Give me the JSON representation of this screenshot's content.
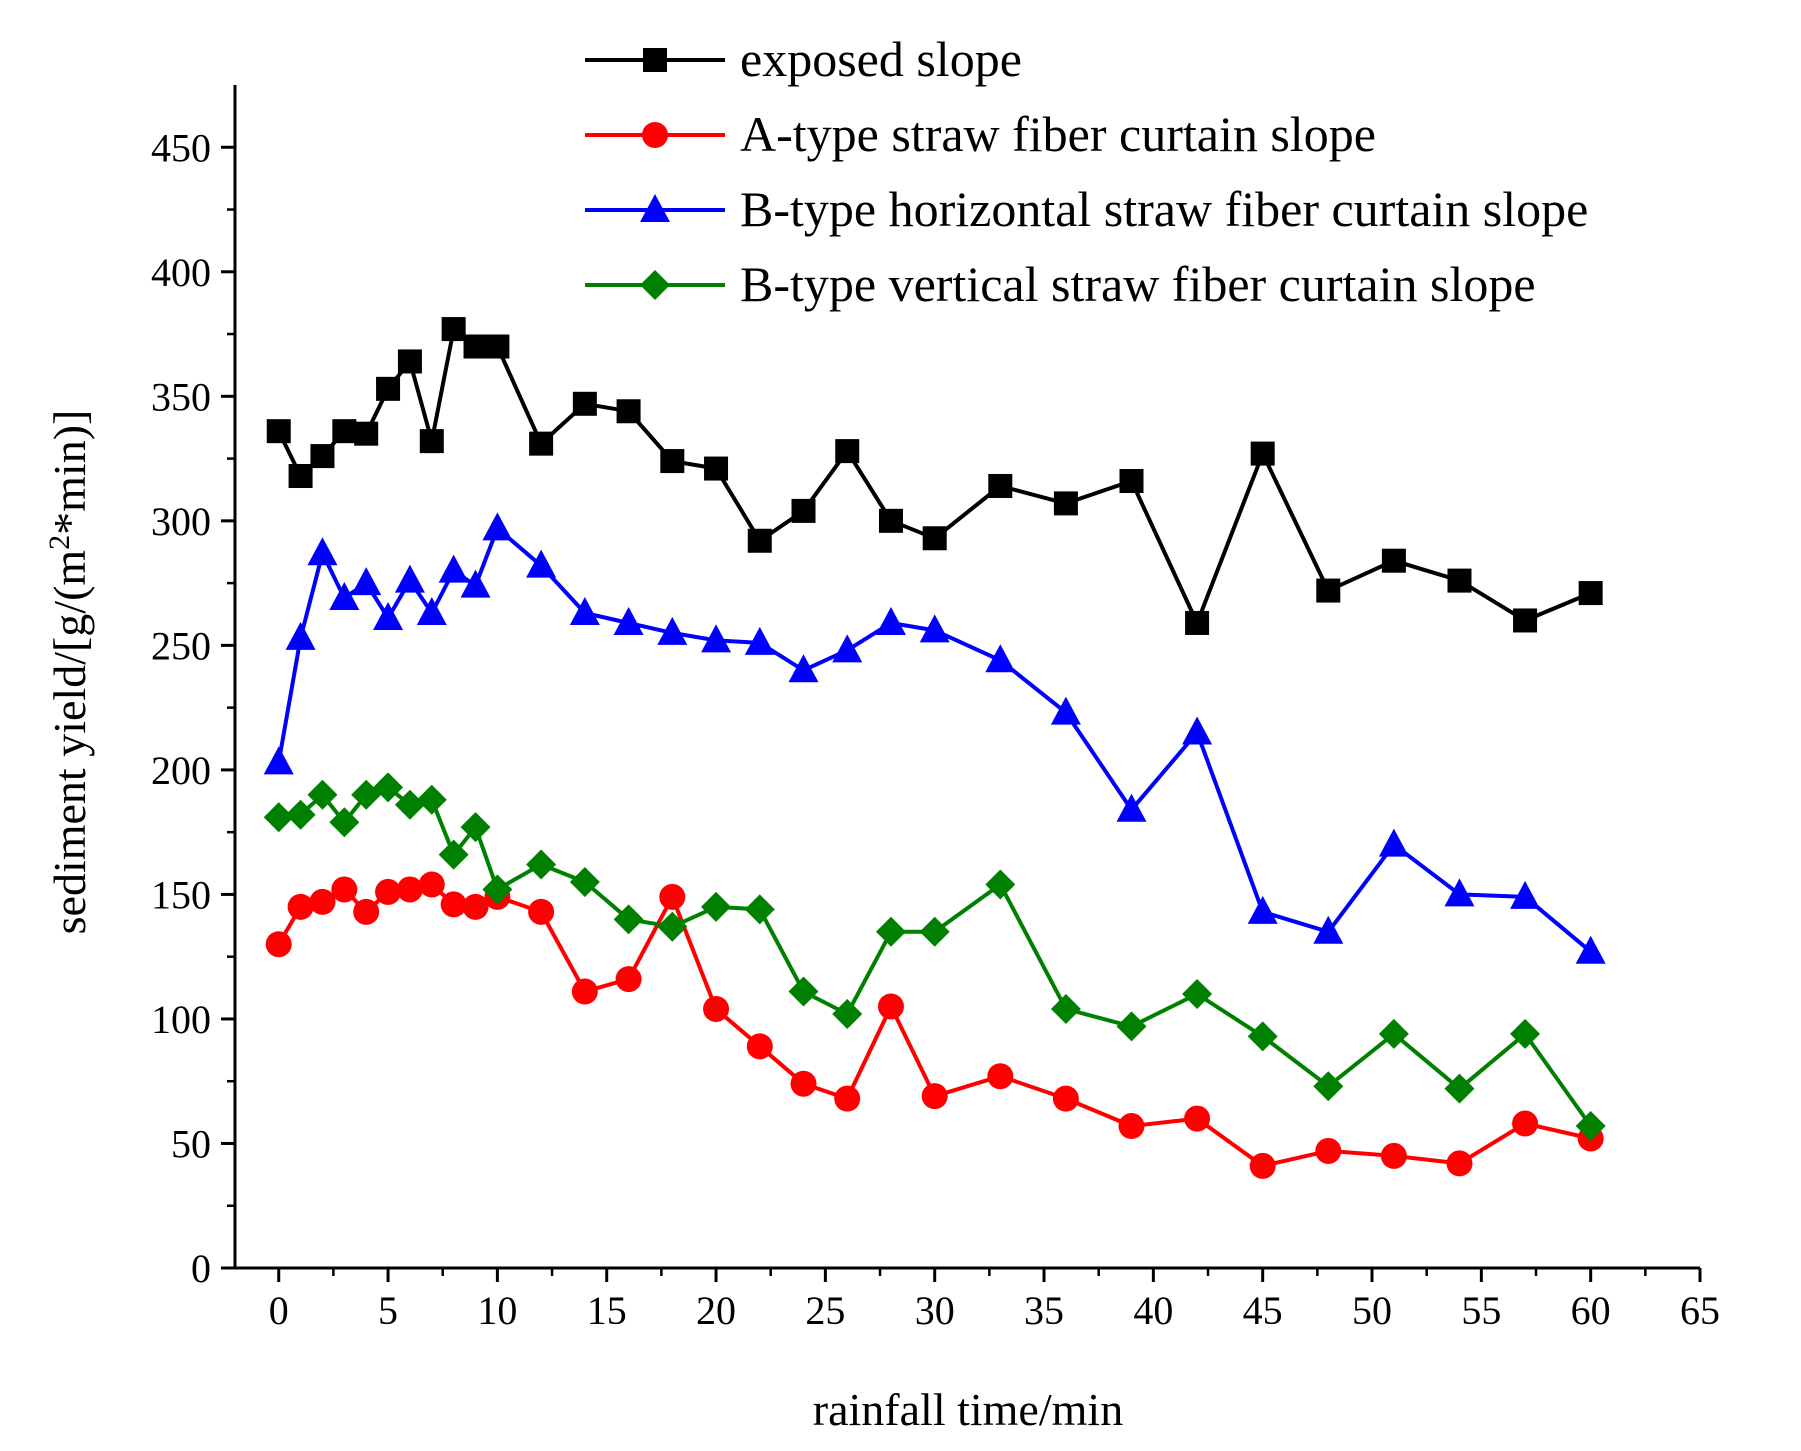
{
  "chart_data": {
    "type": "line",
    "xlabel": "rainfall time/min",
    "ylabel_parts": [
      "sediment yield/[g/(m",
      "2",
      "*min)]"
    ],
    "xlim": [
      -2,
      65
    ],
    "ylim": [
      0,
      475
    ],
    "xticks": [
      "0",
      "5",
      "10",
      "15",
      "20",
      "25",
      "30",
      "35",
      "40",
      "45",
      "50",
      "55",
      "60",
      "65"
    ],
    "yticks": [
      "0",
      "50",
      "100",
      "150",
      "200",
      "250",
      "300",
      "350",
      "400",
      "450"
    ],
    "x": [
      0,
      1,
      2,
      3,
      4,
      5,
      6,
      7,
      8,
      9,
      10,
      12,
      14,
      16,
      18,
      20,
      22,
      24,
      26,
      28,
      30,
      33,
      36,
      39,
      42,
      45,
      48,
      51,
      54,
      57,
      60
    ],
    "series": [
      {
        "name": "exposed slope",
        "color": "#000000",
        "marker": "square",
        "values": [
          336,
          318,
          326,
          336,
          335,
          353,
          364,
          332,
          377,
          370,
          370,
          331,
          347,
          344,
          324,
          321,
          292,
          304,
          328,
          300,
          293,
          314,
          307,
          316,
          259,
          327,
          272,
          284,
          276,
          260,
          271
        ]
      },
      {
        "name": "A-type straw fiber curtain slope",
        "color": "#ff0000",
        "marker": "circle",
        "values": [
          130,
          145,
          147,
          152,
          143,
          151,
          152,
          154,
          146,
          145,
          149,
          143,
          111,
          116,
          149,
          104,
          89,
          74,
          68,
          105,
          69,
          77,
          68,
          57,
          60,
          41,
          47,
          45,
          42,
          58,
          52
        ]
      },
      {
        "name": "B-type horizontal straw fiber curtain slope",
        "color": "#0000ff",
        "marker": "triangle",
        "values": [
          203,
          253,
          287,
          269,
          275,
          261,
          276,
          263,
          280,
          274,
          297,
          282,
          263,
          259,
          255,
          252,
          251,
          240,
          248,
          259,
          256,
          244,
          223,
          184,
          215,
          143,
          135,
          170,
          150,
          149,
          127
        ]
      },
      {
        "name": "B-type vertical straw fiber curtain slope",
        "color": "#008000",
        "marker": "diamond",
        "values": [
          181,
          182,
          190,
          179,
          190,
          193,
          186,
          188,
          166,
          177,
          152,
          162,
          155,
          140,
          137,
          145,
          144,
          111,
          102,
          135,
          135,
          154,
          104,
          97,
          110,
          93,
          73,
          94,
          72,
          94,
          57
        ]
      }
    ]
  }
}
